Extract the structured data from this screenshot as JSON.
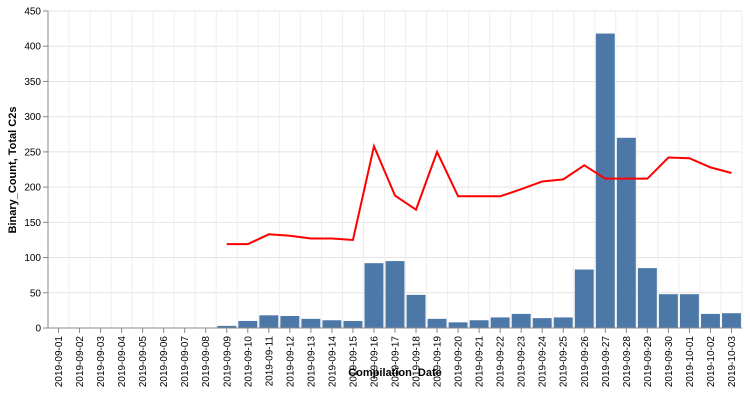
{
  "chart_data": {
    "type": "bar",
    "x_label": "Compilation_Date",
    "y_label": "Binary_Count, Total C2s",
    "categories": [
      "2019-09-01",
      "2019-09-02",
      "2019-09-03",
      "2019-09-04",
      "2019-09-05",
      "2019-09-06",
      "2019-09-07",
      "2019-09-08",
      "2019-09-09",
      "2019-09-10",
      "2019-09-11",
      "2019-09-12",
      "2019-09-13",
      "2019-09-14",
      "2019-09-15",
      "2019-09-16",
      "2019-09-17",
      "2019-09-18",
      "2019-09-19",
      "2019-09-20",
      "2019-09-21",
      "2019-09-22",
      "2019-09-23",
      "2019-09-24",
      "2019-09-25",
      "2019-09-26",
      "2019-09-27",
      "2019-09-28",
      "2019-09-29",
      "2019-09-30",
      "2019-10-01",
      "2019-10-02",
      "2019-10-03"
    ],
    "series": [
      {
        "type": "bar",
        "color": "#4c78a8",
        "values": [
          null,
          null,
          null,
          null,
          null,
          null,
          null,
          null,
          3,
          10,
          18,
          17,
          13,
          11,
          10,
          92,
          95,
          47,
          13,
          8,
          11,
          15,
          20,
          14,
          15,
          83,
          418,
          270,
          85,
          48,
          48,
          20,
          21
        ]
      },
      {
        "type": "line",
        "color": "#ff0000",
        "values": [
          null,
          null,
          null,
          null,
          null,
          null,
          null,
          null,
          119,
          119,
          133,
          131,
          127,
          127,
          125,
          258,
          188,
          168,
          250,
          187,
          187,
          187,
          197,
          208,
          211,
          231,
          212,
          212,
          212,
          242,
          241,
          228,
          220
        ]
      }
    ],
    "ylim": [
      0,
      450
    ],
    "yticks": [
      0,
      50,
      100,
      150,
      200,
      250,
      300,
      350,
      400,
      450
    ],
    "grid": true
  }
}
